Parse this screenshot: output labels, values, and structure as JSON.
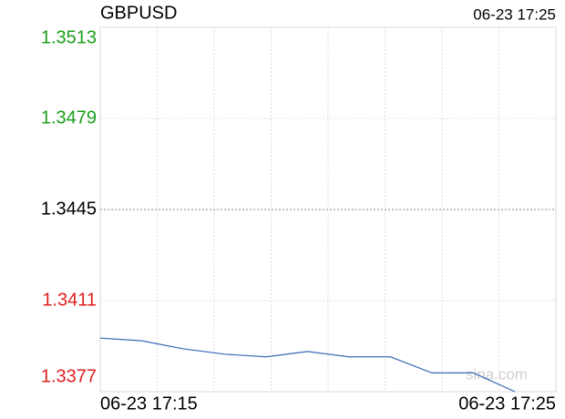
{
  "chart_data": {
    "type": "line",
    "title": "GBPUSD",
    "timestamp": "06-23 17:25",
    "watermark": "sina.com",
    "xlabels": [
      "06-23 17:15",
      "06-23 17:25"
    ],
    "xgrid_divisions": 8,
    "series": [
      {
        "name": "GBPUSD",
        "color": "#3b6bb5",
        "values": [
          1.3397,
          1.3396,
          1.3393,
          1.3391,
          1.339,
          1.3392,
          1.339,
          1.339,
          1.3384,
          1.3384,
          1.3377
        ]
      }
    ],
    "ylim": [
      1.3377,
      1.3513
    ],
    "yticks": [
      1.3513,
      1.3479,
      1.3445,
      1.3411,
      1.3377
    ],
    "ytick_colors": [
      "#1a9e1a",
      "#1a9e1a",
      "#000000",
      "#e02020",
      "#e02020"
    ],
    "grid": true
  }
}
